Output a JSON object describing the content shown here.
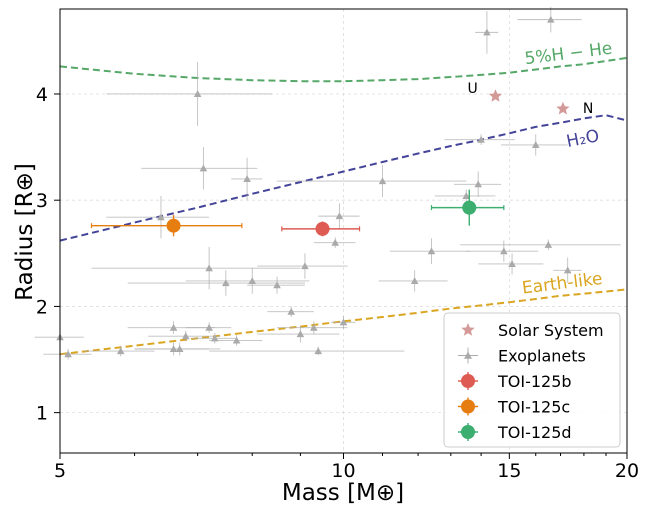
{
  "chart_data": {
    "type": "scatter",
    "xlabel": "Mass [M⊕]",
    "ylabel": "Radius [R⊕]",
    "xscale": "log",
    "xlim": [
      5,
      20
    ],
    "ylim": [
      0.62,
      4.8
    ],
    "xticks": [
      5,
      10,
      15,
      20
    ],
    "xtick_labels": [
      "5",
      "10",
      "15",
      "20"
    ],
    "yticks": [
      1,
      2,
      3,
      4
    ],
    "ytick_labels": [
      "1",
      "2",
      "3",
      "4"
    ],
    "grid": true,
    "legend_placement": "bottom-right",
    "legend": [
      "Solar System",
      "Exoplanets",
      "TOI-125b",
      "TOI-125c",
      "TOI-125d"
    ],
    "composition_curves": [
      {
        "label": "5%H − He",
        "color": "#55a868",
        "points": [
          [
            5,
            4.26
          ],
          [
            6,
            4.19
          ],
          [
            7,
            4.15
          ],
          [
            8,
            4.13
          ],
          [
            9,
            4.12
          ],
          [
            10,
            4.12
          ],
          [
            11,
            4.13
          ],
          [
            12,
            4.14
          ],
          [
            13,
            4.16
          ],
          [
            14,
            4.18
          ],
          [
            15,
            4.2
          ],
          [
            16,
            4.23
          ],
          [
            17,
            4.26
          ],
          [
            18,
            4.28
          ],
          [
            19,
            4.31
          ],
          [
            20,
            4.34
          ]
        ]
      },
      {
        "label": "H₂O",
        "color": "#444499",
        "points": [
          [
            5,
            2.62
          ],
          [
            6,
            2.79
          ],
          [
            7,
            2.93
          ],
          [
            8,
            3.06
          ],
          [
            9,
            3.17
          ],
          [
            10,
            3.27
          ],
          [
            11,
            3.36
          ],
          [
            12,
            3.44
          ],
          [
            13,
            3.51
          ],
          [
            14,
            3.57
          ],
          [
            15,
            3.63
          ],
          [
            16,
            3.69
          ],
          [
            17,
            3.73
          ],
          [
            18,
            3.77
          ],
          [
            19,
            3.8
          ],
          [
            20,
            3.75
          ]
        ]
      },
      {
        "label": "Earth-like",
        "color": "#daa520",
        "points": [
          [
            5,
            1.55
          ],
          [
            6,
            1.63
          ],
          [
            7,
            1.7
          ],
          [
            8,
            1.76
          ],
          [
            9,
            1.81
          ],
          [
            10,
            1.86
          ],
          [
            11,
            1.9
          ],
          [
            12,
            1.94
          ],
          [
            13,
            1.98
          ],
          [
            14,
            2.01
          ],
          [
            15,
            2.04
          ],
          [
            16,
            2.07
          ],
          [
            17,
            2.1
          ],
          [
            18,
            2.12
          ],
          [
            19,
            2.14
          ],
          [
            20,
            2.16
          ]
        ]
      }
    ],
    "solar_system": {
      "color": "#d49a9a",
      "points": [
        {
          "label": "U",
          "x": 14.5,
          "y": 3.98
        },
        {
          "label": "N",
          "x": 17.1,
          "y": 3.86
        }
      ]
    },
    "exoplanets": {
      "color": "#aaaaaa",
      "points": [
        {
          "x": 5.0,
          "y": 1.71,
          "xerr": 0.3,
          "yerr": 0.12
        },
        {
          "x": 5.1,
          "y": 1.55,
          "xerr": 0.3,
          "yerr": 0.05
        },
        {
          "x": 5.8,
          "y": 1.58,
          "xerr": 0.5,
          "yerr": 0.05
        },
        {
          "x": 6.4,
          "y": 2.84,
          "xerr": 0.8,
          "yerr": 0.2
        },
        {
          "x": 6.6,
          "y": 1.8,
          "xerr": 0.7,
          "yerr": 0.06
        },
        {
          "x": 6.6,
          "y": 1.6,
          "xerr": 0.6,
          "yerr": 0.06
        },
        {
          "x": 6.7,
          "y": 1.6,
          "xerr": 0.7,
          "yerr": 0.06
        },
        {
          "x": 6.8,
          "y": 1.72,
          "xerr": 0.6,
          "yerr": 0.05
        },
        {
          "x": 7.0,
          "y": 4.0,
          "xerr": 1.4,
          "yerr": 0.3
        },
        {
          "x": 7.1,
          "y": 3.3,
          "xerr": 1.0,
          "yerr": 0.2
        },
        {
          "x": 7.2,
          "y": 2.36,
          "xerr": 1.8,
          "yerr": 0.2
        },
        {
          "x": 7.2,
          "y": 1.8,
          "xerr": 0.4,
          "yerr": 0.05
        },
        {
          "x": 7.3,
          "y": 1.7,
          "xerr": 0.4,
          "yerr": 0.05
        },
        {
          "x": 7.5,
          "y": 2.22,
          "xerr": 1.6,
          "yerr": 0.12
        },
        {
          "x": 7.7,
          "y": 1.68,
          "xerr": 0.5,
          "yerr": 0.05
        },
        {
          "x": 7.9,
          "y": 3.2,
          "xerr": 0.3,
          "yerr": 0.2
        },
        {
          "x": 8.0,
          "y": 2.24,
          "xerr": 1.2,
          "yerr": 0.12
        },
        {
          "x": 8.5,
          "y": 2.2,
          "xerr": 0.6,
          "yerr": 0.08
        },
        {
          "x": 8.8,
          "y": 1.95,
          "xerr": 0.5,
          "yerr": 0.05
        },
        {
          "x": 9.0,
          "y": 1.74,
          "xerr": 0.9,
          "yerr": 0.08
        },
        {
          "x": 9.1,
          "y": 2.38,
          "xerr": 1.0,
          "yerr": 0.12
        },
        {
          "x": 9.3,
          "y": 1.8,
          "xerr": 0.8,
          "yerr": 0.06
        },
        {
          "x": 9.4,
          "y": 1.58,
          "xerr": 2.2,
          "yerr": 0.04
        },
        {
          "x": 9.8,
          "y": 2.6,
          "xerr": 0.5,
          "yerr": 0.05
        },
        {
          "x": 9.9,
          "y": 2.85,
          "xerr": 0.5,
          "yerr": 0.12
        },
        {
          "x": 10.0,
          "y": 1.85,
          "xerr": 0.3,
          "yerr": 0.06
        },
        {
          "x": 11.0,
          "y": 3.18,
          "xerr": 2.5,
          "yerr": 0.15
        },
        {
          "x": 11.9,
          "y": 2.24,
          "xerr": 1.0,
          "yerr": 0.1
        },
        {
          "x": 12.4,
          "y": 2.52,
          "xerr": 1.2,
          "yerr": 0.12
        },
        {
          "x": 13.5,
          "y": 3.04,
          "xerr": 1.0,
          "yerr": 0.06
        },
        {
          "x": 13.9,
          "y": 3.15,
          "xerr": 0.8,
          "yerr": 0.12
        },
        {
          "x": 14.0,
          "y": 3.57,
          "xerr": 1.2,
          "yerr": 0.05
        },
        {
          "x": 14.2,
          "y": 4.58,
          "xerr": 0.4,
          "yerr": 0.2
        },
        {
          "x": 14.8,
          "y": 2.52,
          "xerr": 1.3,
          "yerr": 0.1
        },
        {
          "x": 15.1,
          "y": 2.4,
          "xerr": 1.2,
          "yerr": 0.1
        },
        {
          "x": 16.0,
          "y": 3.52,
          "xerr": 1.3,
          "yerr": 0.1
        },
        {
          "x": 16.5,
          "y": 2.58,
          "xerr": 3.2,
          "yerr": 0.05
        },
        {
          "x": 16.6,
          "y": 4.7,
          "xerr": 1.3,
          "yerr": 0.12
        },
        {
          "x": 17.3,
          "y": 2.34,
          "xerr": 0.6,
          "yerr": 0.12
        }
      ]
    },
    "series": [
      {
        "name": "TOI-125b",
        "color": "#dd5b52",
        "x": 9.5,
        "y": 2.73,
        "xerr": 0.9,
        "yerr": 0.07
      },
      {
        "name": "TOI-125c",
        "color": "#e57d11",
        "x": 6.6,
        "y": 2.76,
        "xerr": 1.2,
        "yerr": 0.1
      },
      {
        "name": "TOI-125d",
        "color": "#3bae70",
        "x": 13.6,
        "y": 2.93,
        "xerr": 1.2,
        "yerr": 0.17
      }
    ]
  }
}
